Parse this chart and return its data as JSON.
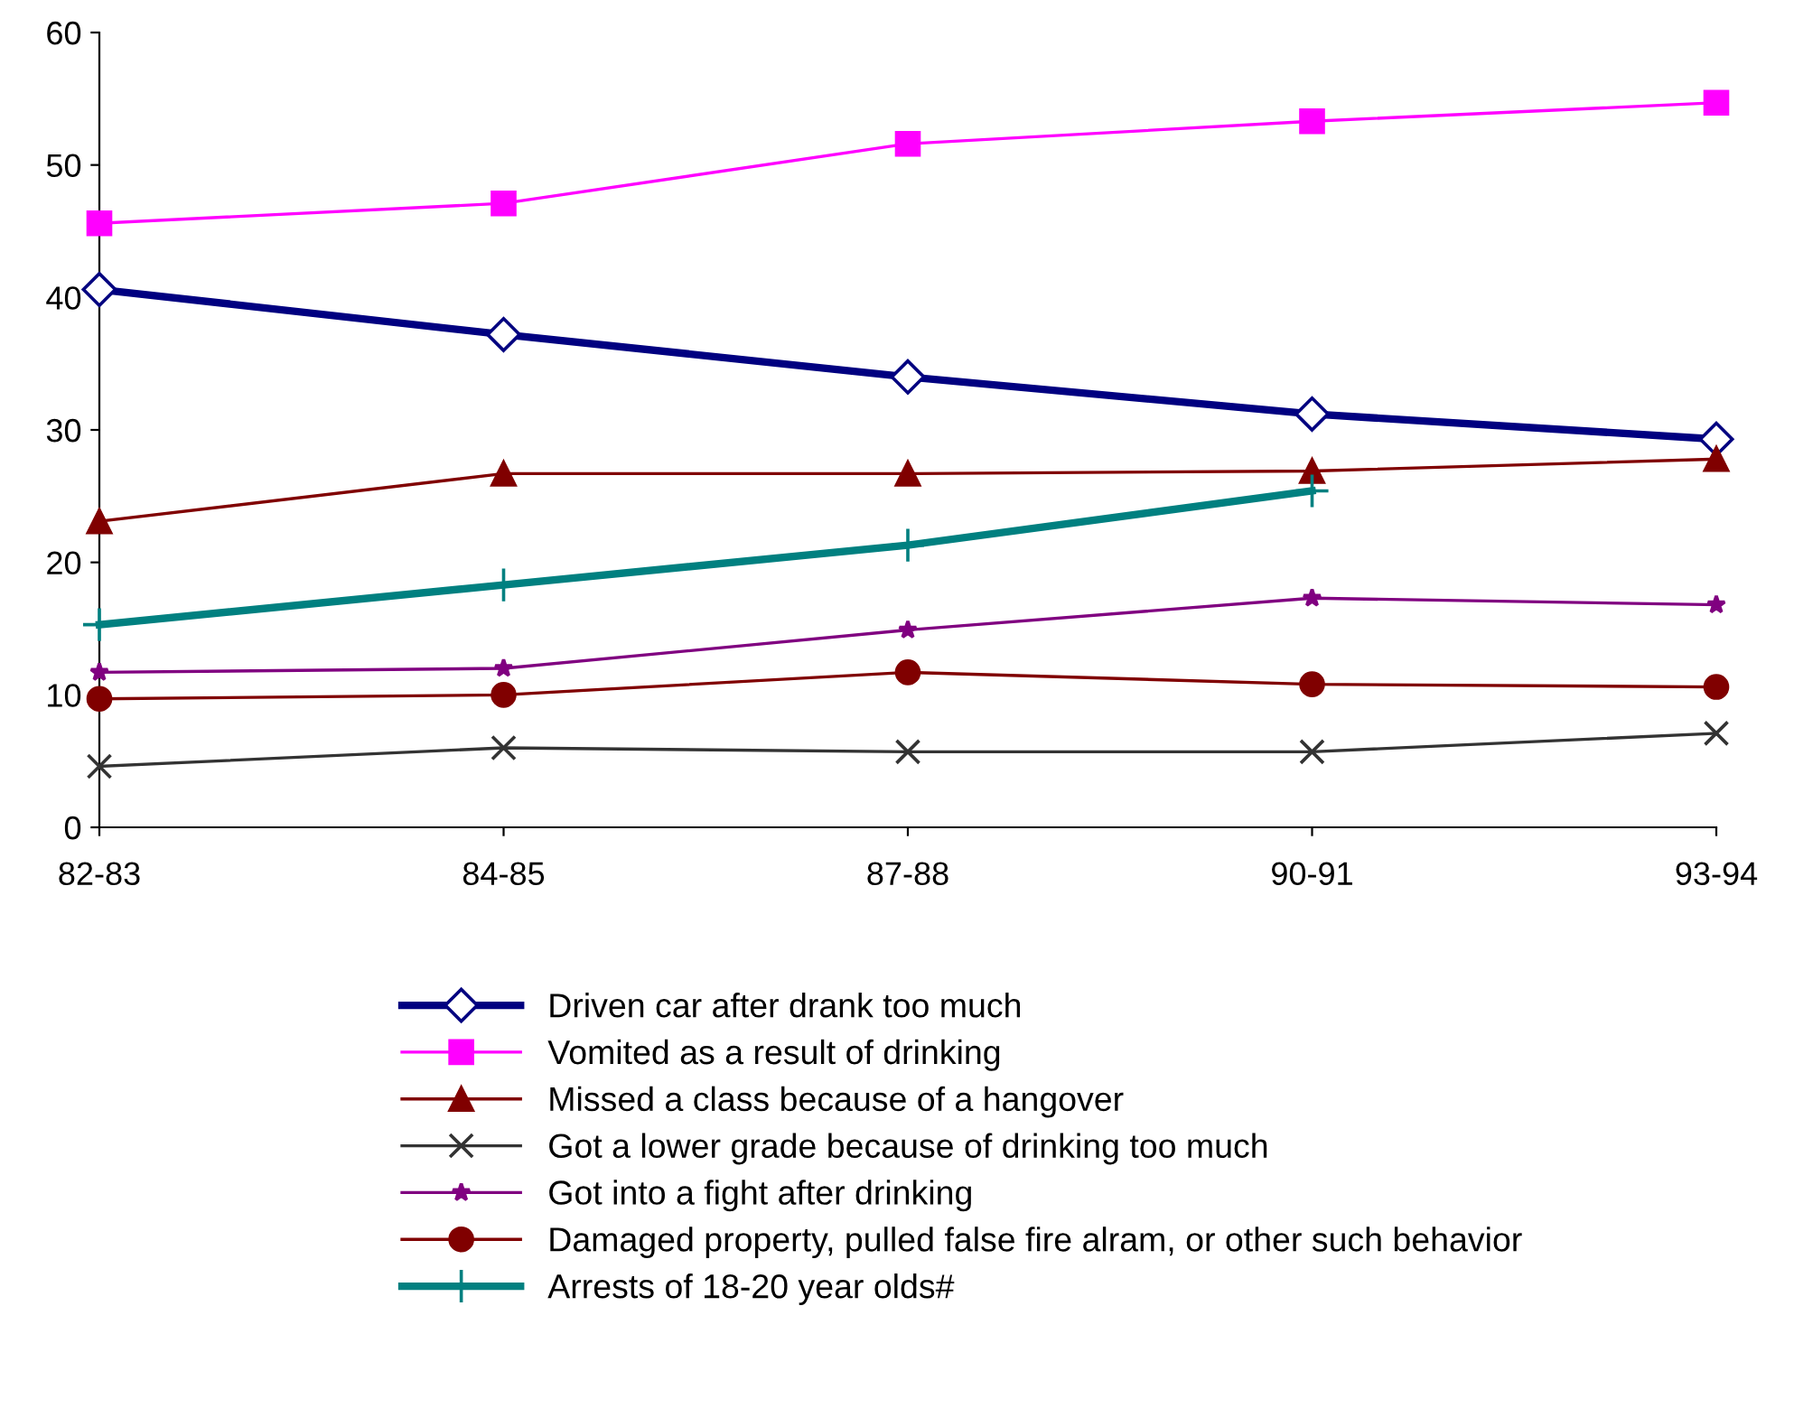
{
  "chart_data": {
    "type": "line",
    "categories": [
      "82-83",
      "84-85",
      "87-88",
      "90-91",
      "93-94"
    ],
    "ylim": [
      0,
      60
    ],
    "yticks": [
      0,
      10,
      20,
      30,
      40,
      50,
      60
    ],
    "grid": false,
    "legend": "bottom",
    "line_style": "solid",
    "series": [
      {
        "name": "Driven car after drank too much",
        "color": "#000080",
        "marker": "diamond",
        "values": [
          40.6,
          37.2,
          34.0,
          31.2,
          29.3
        ]
      },
      {
        "name": "Vomited as a result of drinking",
        "color": "#ff00ff",
        "marker": "square",
        "values": [
          45.6,
          47.1,
          51.6,
          53.3,
          54.7
        ]
      },
      {
        "name": "Missed a class because of a hangover",
        "color": "#800000",
        "marker": "triangle",
        "values": [
          23.1,
          26.7,
          26.7,
          26.9,
          27.8
        ]
      },
      {
        "name": "Got a lower grade because of drinking too much",
        "color": "#333333",
        "marker": "cross",
        "values": [
          4.6,
          6.0,
          5.7,
          5.7,
          7.1
        ]
      },
      {
        "name": "Got into a fight after drinking",
        "color": "#800080",
        "marker": "star",
        "values": [
          11.7,
          12.0,
          14.9,
          17.3,
          16.8
        ]
      },
      {
        "name": "Damaged property, pulled false fire alram, or other such behavior",
        "color": "#800000",
        "marker": "circle",
        "values": [
          9.7,
          10.0,
          11.7,
          10.8,
          10.6
        ]
      },
      {
        "name": "Arrests of 18-20 year olds#",
        "color": "#008080",
        "marker": "plus",
        "values": [
          15.3,
          18.3,
          21.3,
          25.4,
          null
        ]
      }
    ]
  }
}
